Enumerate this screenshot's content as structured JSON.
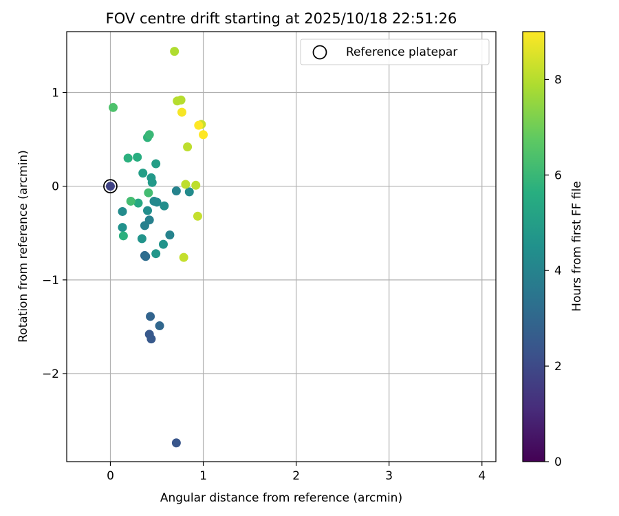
{
  "chart_data": {
    "type": "scatter",
    "title": "FOV centre drift starting at 2025/10/18 22:51:26",
    "xlabel": "Angular distance from reference (arcmin)",
    "ylabel": "Rotation from reference (arcmin)",
    "xlim": [
      -0.47,
      4.15
    ],
    "ylim": [
      -2.94,
      1.65
    ],
    "xticks": [
      0,
      1,
      2,
      3,
      4
    ],
    "xtick_labels": [
      "0",
      "1",
      "2",
      "3",
      "4"
    ],
    "yticks": [
      -2,
      -1,
      0,
      1
    ],
    "ytick_labels": [
      "−2",
      "−1",
      "0",
      "1"
    ],
    "grid": true,
    "legend": {
      "location": "top-right",
      "entries": [
        "Reference platepar"
      ]
    },
    "colorbar": {
      "label": "Hours from first FF file",
      "colormap": "viridis",
      "range": [
        0,
        9
      ],
      "ticks": [
        0,
        2,
        4,
        6,
        8
      ],
      "tick_labels": [
        "0",
        "2",
        "4",
        "6",
        "8"
      ]
    },
    "reference_point": {
      "x": 0,
      "y": 0
    },
    "points": [
      {
        "x": 0.0,
        "y": 0.0,
        "hours": 1.8
      },
      {
        "x": 0.71,
        "y": -2.74,
        "hours": 2.4
      },
      {
        "x": 0.42,
        "y": -1.58,
        "hours": 2.5
      },
      {
        "x": 0.44,
        "y": -1.63,
        "hours": 2.5
      },
      {
        "x": 0.43,
        "y": -1.39,
        "hours": 2.9
      },
      {
        "x": 0.53,
        "y": -1.49,
        "hours": 3.0
      },
      {
        "x": 0.37,
        "y": -0.74,
        "hours": 3.1
      },
      {
        "x": 0.38,
        "y": -0.75,
        "hours": 3.2
      },
      {
        "x": 0.37,
        "y": -0.42,
        "hours": 3.9
      },
      {
        "x": 0.42,
        "y": -0.36,
        "hours": 3.9
      },
      {
        "x": 0.64,
        "y": -0.52,
        "hours": 4.0
      },
      {
        "x": 0.71,
        "y": -0.05,
        "hours": 4.0
      },
      {
        "x": 0.47,
        "y": -0.16,
        "hours": 4.2
      },
      {
        "x": 0.5,
        "y": -0.17,
        "hours": 4.2
      },
      {
        "x": 0.13,
        "y": -0.27,
        "hours": 4.3
      },
      {
        "x": 0.85,
        "y": -0.06,
        "hours": 4.3
      },
      {
        "x": 0.58,
        "y": -0.21,
        "hours": 4.4
      },
      {
        "x": 0.4,
        "y": -0.26,
        "hours": 4.4
      },
      {
        "x": 0.13,
        "y": -0.44,
        "hours": 4.5
      },
      {
        "x": 0.57,
        "y": -0.62,
        "hours": 4.6
      },
      {
        "x": 0.34,
        "y": -0.56,
        "hours": 4.6
      },
      {
        "x": 0.49,
        "y": -0.72,
        "hours": 4.7
      },
      {
        "x": 0.44,
        "y": 0.09,
        "hours": 4.8
      },
      {
        "x": 0.45,
        "y": 0.04,
        "hours": 4.8
      },
      {
        "x": 0.35,
        "y": 0.14,
        "hours": 5.0
      },
      {
        "x": 0.49,
        "y": 0.24,
        "hours": 5.0
      },
      {
        "x": 0.3,
        "y": -0.18,
        "hours": 5.4
      },
      {
        "x": 0.14,
        "y": -0.53,
        "hours": 5.7
      },
      {
        "x": 0.29,
        "y": 0.31,
        "hours": 5.6
      },
      {
        "x": 0.19,
        "y": 0.3,
        "hours": 5.7
      },
      {
        "x": 0.4,
        "y": 0.52,
        "hours": 5.8
      },
      {
        "x": 0.42,
        "y": 0.55,
        "hours": 6.0
      },
      {
        "x": 0.41,
        "y": -0.07,
        "hours": 6.2
      },
      {
        "x": 0.22,
        "y": -0.16,
        "hours": 6.2
      },
      {
        "x": 0.03,
        "y": 0.84,
        "hours": 6.4
      },
      {
        "x": 0.69,
        "y": 1.44,
        "hours": 7.9
      },
      {
        "x": 0.72,
        "y": 0.91,
        "hours": 8.0
      },
      {
        "x": 0.76,
        "y": 0.92,
        "hours": 8.0
      },
      {
        "x": 0.83,
        "y": 0.42,
        "hours": 8.1
      },
      {
        "x": 0.81,
        "y": 0.02,
        "hours": 8.1
      },
      {
        "x": 0.92,
        "y": 0.01,
        "hours": 8.1
      },
      {
        "x": 0.79,
        "y": -0.76,
        "hours": 8.2
      },
      {
        "x": 0.94,
        "y": -0.32,
        "hours": 8.2
      },
      {
        "x": 0.98,
        "y": 0.66,
        "hours": 8.3
      },
      {
        "x": 0.77,
        "y": 0.79,
        "hours": 8.9
      },
      {
        "x": 0.95,
        "y": 0.65,
        "hours": 9.0
      },
      {
        "x": 1.0,
        "y": 0.55,
        "hours": 9.0
      }
    ]
  }
}
